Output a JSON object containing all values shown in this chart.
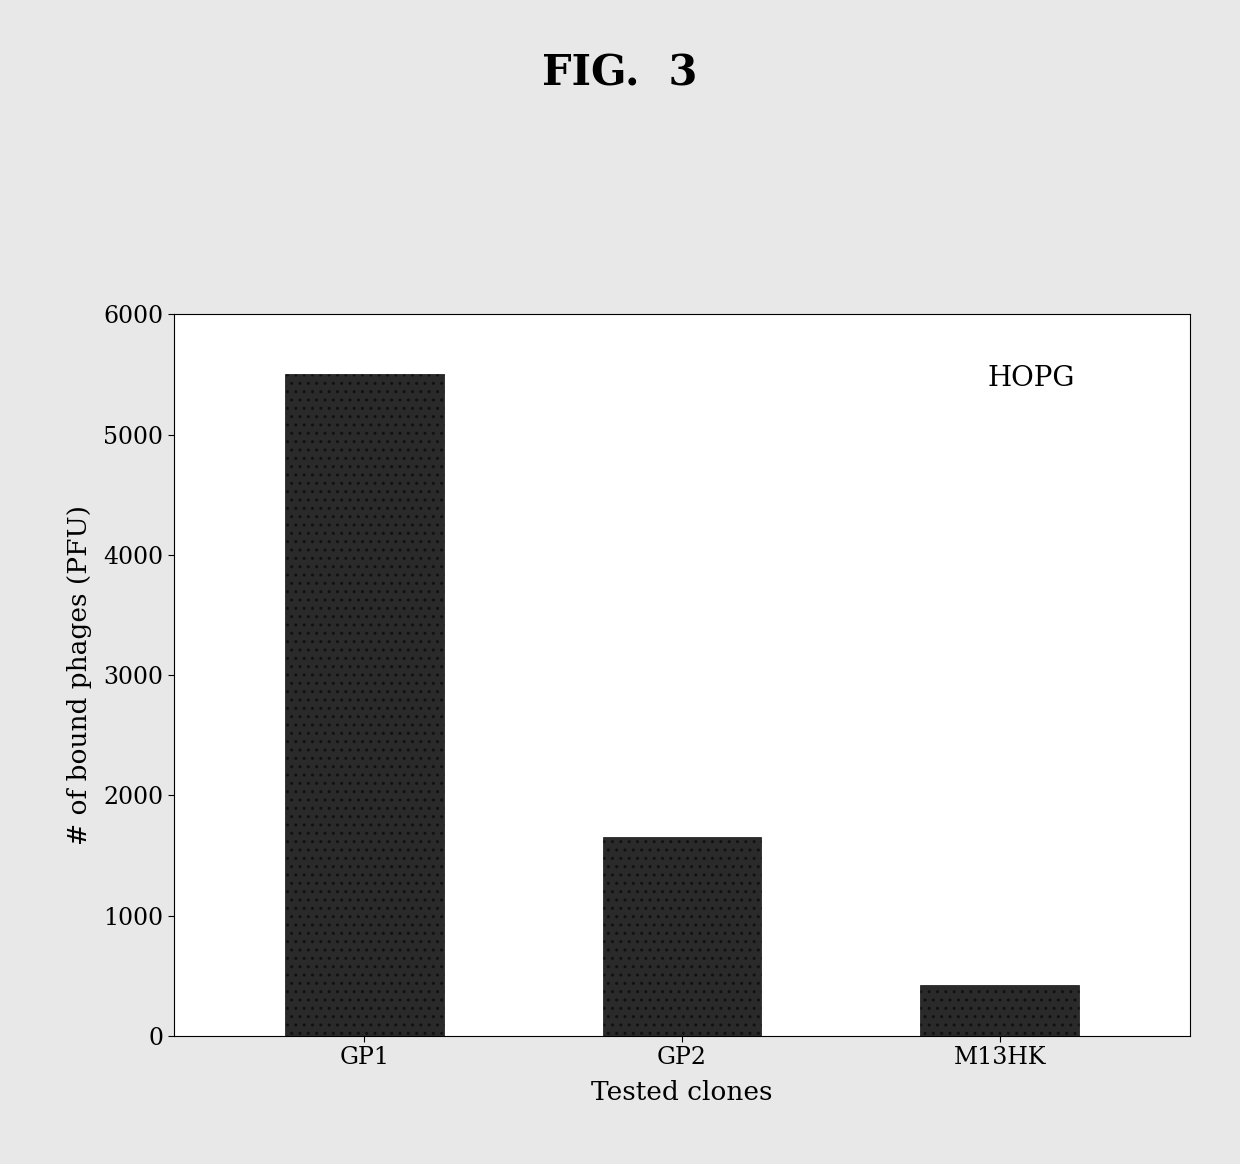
{
  "title": "FIG.  3",
  "categories": [
    "GP1",
    "GP2",
    "M13HK"
  ],
  "values": [
    5500,
    1650,
    420
  ],
  "bar_color": "#2a2a2a",
  "xlabel": "Tested clones",
  "ylabel": "# of bound phages (PFU)",
  "ylim": [
    0,
    6000
  ],
  "yticks": [
    0,
    1000,
    2000,
    3000,
    4000,
    5000,
    6000
  ],
  "annotation": "HOPG",
  "figure_bg_color": "#e8e8e8",
  "plot_bg_color": "#ffffff",
  "title_fontsize": 30,
  "axis_fontsize": 19,
  "tick_fontsize": 17,
  "annotation_fontsize": 20,
  "bar_width": 0.5,
  "hatch": ".."
}
